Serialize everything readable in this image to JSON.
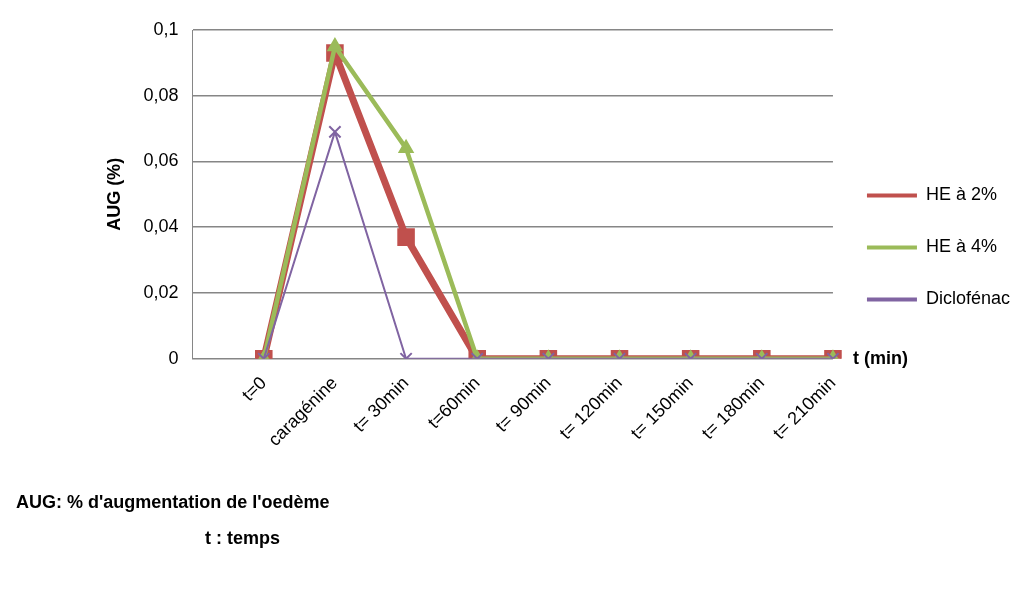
{
  "chart_data": {
    "type": "line",
    "categories": [
      null,
      "t=0",
      "caragénine",
      "t= 30min",
      "t=60min",
      "t= 90min",
      "t= 120min",
      "t= 150min",
      "t= 180min",
      "t= 210min"
    ],
    "series": [
      {
        "name": "HE à 2%",
        "color": "#c0504d",
        "marker": "square",
        "values": [
          null,
          0,
          0.093,
          0.037,
          0,
          0,
          0,
          0,
          0,
          0
        ]
      },
      {
        "name": "HE à 4%",
        "color": "#9bbb59",
        "marker": "triangle",
        "values": [
          null,
          0,
          0.095,
          0.064,
          0,
          0,
          0,
          0,
          0,
          0
        ]
      },
      {
        "name": "Diclofénac",
        "color": "#8064a2",
        "marker": "cross",
        "values": [
          null,
          0,
          0.069,
          0,
          0,
          0,
          0,
          0,
          0,
          0
        ]
      }
    ],
    "ylabel": "AUG (%)",
    "xlabel": "t (min)",
    "ylim": [
      0,
      0.1
    ],
    "yticks": [
      {
        "value": 0,
        "label": "0"
      },
      {
        "value": 0.02,
        "label": "0,02"
      },
      {
        "value": 0.04,
        "label": "0,04"
      },
      {
        "value": 0.06,
        "label": "0,06"
      },
      {
        "value": 0.08,
        "label": "0,08"
      },
      {
        "value": 0.1,
        "label": "0,1"
      }
    ],
    "grid": "y",
    "legend": "right",
    "annotations": [
      "AUG: % d'augmentation de l'oedème",
      "t : temps"
    ]
  }
}
